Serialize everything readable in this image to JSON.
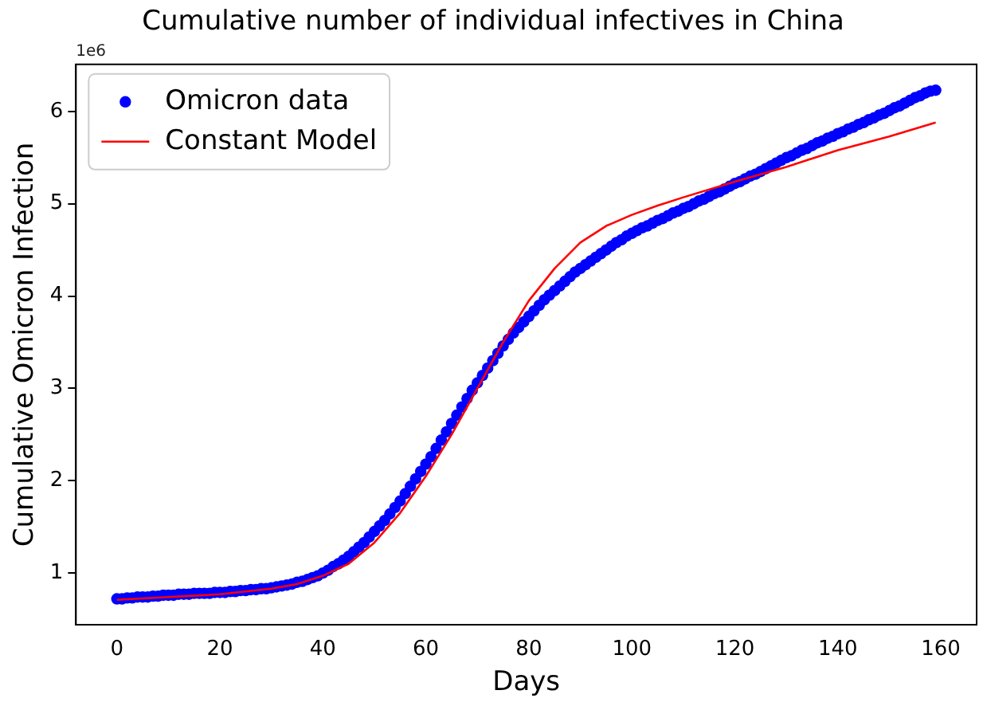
{
  "chart_data": {
    "type": "scatter",
    "title": "Cumulative number of individual infectives in China",
    "xlabel": "Days",
    "ylabel": "Cumulative Omicron Infection",
    "annotations": [
      "1e6"
    ],
    "xlim": [
      -7.95,
      166.95
    ],
    "xticks": [
      0,
      20,
      40,
      60,
      80,
      100,
      120,
      140,
      160
    ],
    "ylim": [
      0.44,
      6.51
    ],
    "yticks": [
      1,
      2,
      3,
      4,
      5,
      6
    ],
    "legend": "top left",
    "grid": false,
    "series": [
      {
        "name": "Omicron data",
        "type": "scatter",
        "marker": "circle",
        "color": "#0000ff",
        "x": [
          0,
          1,
          2,
          3,
          4,
          5,
          6,
          7,
          8,
          9,
          10,
          11,
          12,
          13,
          14,
          15,
          16,
          17,
          18,
          19,
          20,
          21,
          22,
          23,
          24,
          25,
          26,
          27,
          28,
          29,
          30,
          31,
          32,
          33,
          34,
          35,
          36,
          37,
          38,
          39,
          40,
          41,
          42,
          43,
          44,
          45,
          46,
          47,
          48,
          49,
          50,
          51,
          52,
          53,
          54,
          55,
          56,
          57,
          58,
          59,
          60,
          61,
          62,
          63,
          64,
          65,
          66,
          67,
          68,
          69,
          70,
          71,
          72,
          73,
          74,
          75,
          76,
          77,
          78,
          79,
          80,
          81,
          82,
          83,
          84,
          85,
          86,
          87,
          88,
          89,
          90,
          91,
          92,
          93,
          94,
          95,
          96,
          97,
          98,
          99,
          100,
          101,
          102,
          103,
          104,
          105,
          106,
          107,
          108,
          109,
          110,
          111,
          112,
          113,
          114,
          115,
          116,
          117,
          118,
          119,
          120,
          121,
          122,
          123,
          124,
          125,
          126,
          127,
          128,
          129,
          130,
          131,
          132,
          133,
          134,
          135,
          136,
          137,
          138,
          139,
          140,
          141,
          142,
          143,
          144,
          145,
          146,
          147,
          148,
          149,
          150,
          151,
          152,
          153,
          154,
          155,
          156,
          157,
          158,
          159
        ],
        "values": [
          0.72,
          0.72,
          0.73,
          0.73,
          0.74,
          0.74,
          0.74,
          0.75,
          0.75,
          0.76,
          0.76,
          0.76,
          0.77,
          0.77,
          0.77,
          0.78,
          0.78,
          0.78,
          0.78,
          0.79,
          0.79,
          0.79,
          0.8,
          0.8,
          0.81,
          0.81,
          0.82,
          0.82,
          0.83,
          0.83,
          0.84,
          0.85,
          0.86,
          0.87,
          0.88,
          0.9,
          0.91,
          0.93,
          0.95,
          0.97,
          1.0,
          1.03,
          1.07,
          1.1,
          1.14,
          1.18,
          1.23,
          1.28,
          1.33,
          1.39,
          1.45,
          1.51,
          1.57,
          1.64,
          1.71,
          1.78,
          1.86,
          1.94,
          2.02,
          2.1,
          2.18,
          2.26,
          2.35,
          2.44,
          2.53,
          2.62,
          2.71,
          2.8,
          2.89,
          2.98,
          3.06,
          3.14,
          3.22,
          3.3,
          3.38,
          3.46,
          3.53,
          3.6,
          3.66,
          3.72,
          3.78,
          3.84,
          3.9,
          3.96,
          4.01,
          4.06,
          4.11,
          4.16,
          4.21,
          4.26,
          4.3,
          4.34,
          4.38,
          4.42,
          4.46,
          4.5,
          4.54,
          4.58,
          4.61,
          4.65,
          4.68,
          4.71,
          4.74,
          4.76,
          4.79,
          4.82,
          4.84,
          4.87,
          4.9,
          4.92,
          4.95,
          4.97,
          5.0,
          5.03,
          5.05,
          5.08,
          5.11,
          5.13,
          5.16,
          5.19,
          5.22,
          5.24,
          5.27,
          5.3,
          5.32,
          5.35,
          5.38,
          5.41,
          5.44,
          5.47,
          5.5,
          5.52,
          5.55,
          5.58,
          5.6,
          5.63,
          5.66,
          5.68,
          5.71,
          5.73,
          5.76,
          5.78,
          5.81,
          5.83,
          5.86,
          5.88,
          5.91,
          5.93,
          5.96,
          5.98,
          6.01,
          6.04,
          6.06,
          6.09,
          6.12,
          6.15,
          6.17,
          6.2,
          6.22,
          6.23
        ]
      },
      {
        "name": "Constant Model",
        "type": "line",
        "marker": "none",
        "line_style": "solid",
        "color": "#ff0000",
        "x": [
          0,
          10,
          20,
          30,
          35,
          40,
          45,
          50,
          55,
          60,
          65,
          70,
          75,
          80,
          85,
          90,
          95,
          100,
          105,
          110,
          120,
          130,
          140,
          150,
          159
        ],
        "values": [
          0.71,
          0.74,
          0.77,
          0.83,
          0.88,
          0.97,
          1.1,
          1.33,
          1.65,
          2.05,
          2.5,
          3.0,
          3.5,
          3.95,
          4.3,
          4.58,
          4.76,
          4.88,
          4.98,
          5.07,
          5.24,
          5.4,
          5.58,
          5.73,
          5.88
        ]
      }
    ]
  }
}
